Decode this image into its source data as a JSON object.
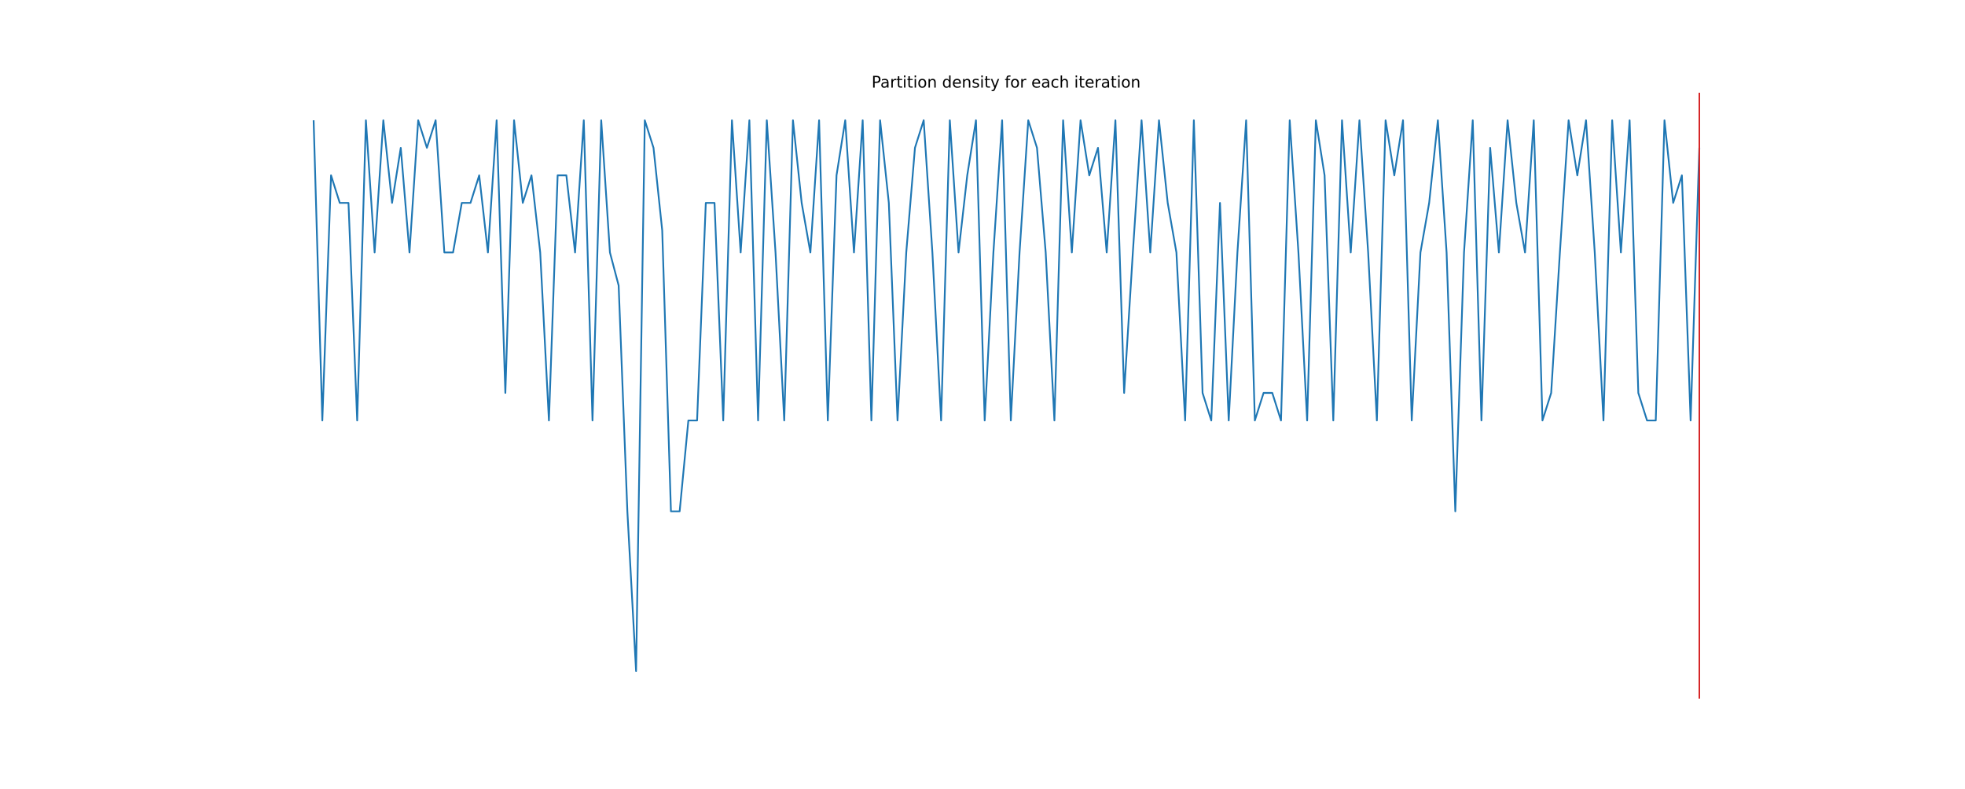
{
  "chart_data": {
    "type": "line",
    "title": "Partition density for each iteration",
    "xlim": [
      0,
      159
    ],
    "ylim": [
      -0.05,
      1.05
    ],
    "series": [
      {
        "color": "#1f77b4",
        "values": [
          1,
          0.455,
          0.9,
          0.85,
          0.85,
          0.455,
          1,
          0.76,
          1,
          0.85,
          0.95,
          0.76,
          1,
          0.95,
          1,
          0.76,
          0.76,
          0.85,
          0.85,
          0.9,
          0.76,
          1,
          0.505,
          1,
          0.85,
          0.9,
          0.76,
          0.455,
          0.9,
          0.9,
          0.76,
          1,
          0.455,
          1,
          0.76,
          0.7,
          0.29,
          0,
          1,
          0.95,
          0.8,
          0.29,
          0.29,
          0.455,
          0.455,
          0.85,
          0.85,
          0.455,
          1,
          0.76,
          1,
          0.455,
          1,
          0.76,
          0.455,
          1,
          0.85,
          0.76,
          1,
          0.455,
          0.9,
          1,
          0.76,
          1,
          0.455,
          1,
          0.85,
          0.455,
          0.76,
          0.95,
          1,
          0.76,
          0.455,
          1,
          0.76,
          0.9,
          1,
          0.455,
          0.76,
          1,
          0.455,
          0.76,
          1,
          0.95,
          0.76,
          0.455,
          1,
          0.76,
          1,
          0.9,
          0.95,
          0.76,
          1,
          0.505,
          0.76,
          1,
          0.76,
          1,
          0.85,
          0.76,
          0.455,
          1,
          0.505,
          0.455,
          0.85,
          0.455,
          0.76,
          1,
          0.455,
          0.505,
          0.505,
          0.455,
          1,
          0.76,
          0.455,
          1,
          0.9,
          0.455,
          1,
          0.76,
          1,
          0.76,
          0.455,
          1,
          0.9,
          1,
          0.455,
          0.76,
          0.85,
          1,
          0.76,
          0.29,
          0.76,
          1,
          0.455,
          0.95,
          0.76,
          1,
          0.85,
          0.76,
          1,
          0.455,
          0.505,
          0.76,
          1,
          0.9,
          1,
          0.76,
          0.455,
          1,
          0.76,
          1,
          0.505,
          0.455,
          0.455,
          1,
          0.85,
          0.9,
          0.455,
          0.95
        ]
      }
    ],
    "vline": {
      "x": 159,
      "color": "#d62728"
    }
  }
}
